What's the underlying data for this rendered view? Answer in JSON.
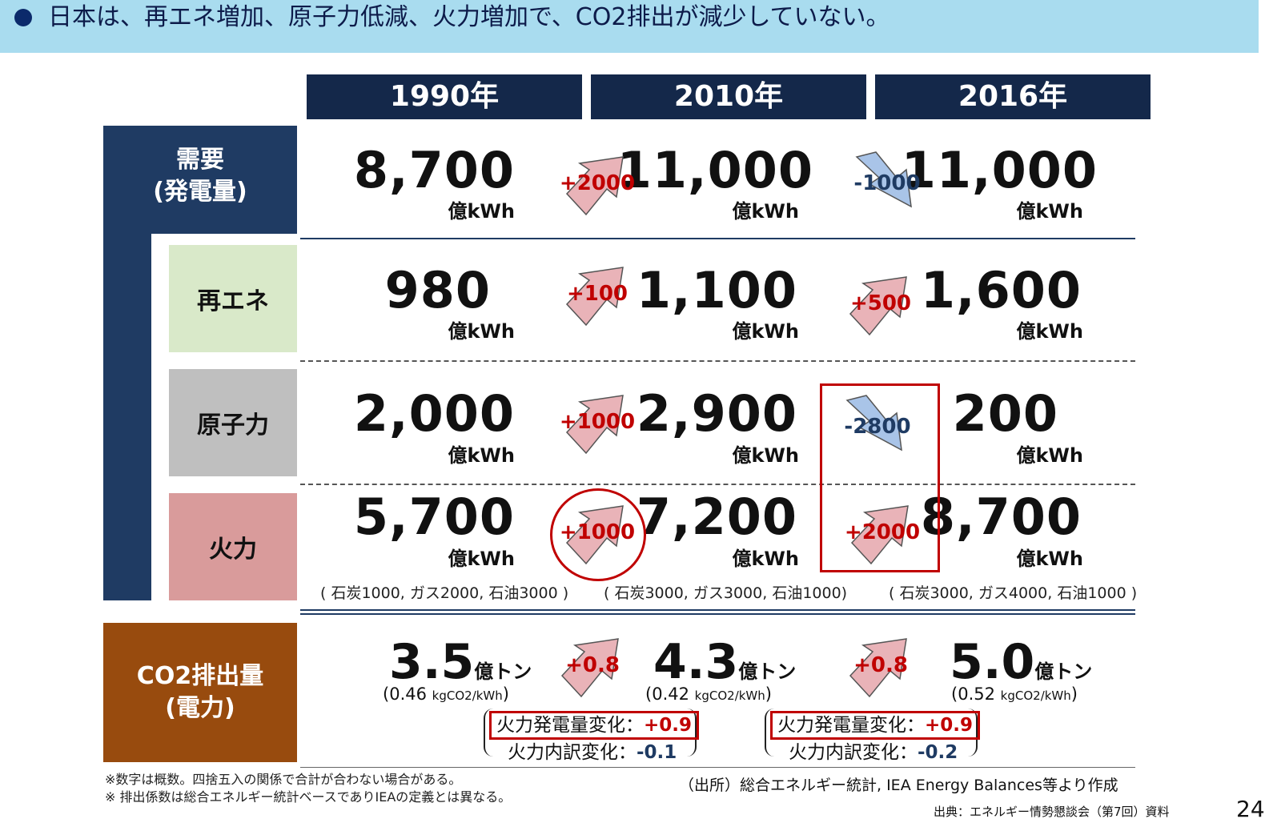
{
  "header": {
    "text": "日本は、再エネ増加、原子力低減、火力増加で、CO2排出が減少していない。"
  },
  "years": [
    "1990年",
    "2010年",
    "2016年"
  ],
  "categories": {
    "demand": [
      "需要",
      "(発電量)"
    ],
    "renew": "再エネ",
    "nuclear": "原子力",
    "thermal": "火力",
    "co2": [
      "CO2排出量",
      "(電力)"
    ]
  },
  "unit_kwh": "億kWh",
  "rows": {
    "demand": {
      "values": [
        "8,700",
        "11,000",
        "11,000"
      ],
      "changes": [
        "+2000",
        "-1000"
      ]
    },
    "renew": {
      "values": [
        "980",
        "1,100",
        "1,600"
      ],
      "changes": [
        "+100",
        "+500"
      ]
    },
    "nuclear": {
      "values": [
        "2,000",
        "2,900",
        "200"
      ],
      "changes": [
        "+1000",
        "-2800"
      ]
    },
    "thermal": {
      "values": [
        "5,700",
        "7,200",
        "8,700"
      ],
      "changes": [
        "+1000",
        "+2000"
      ]
    }
  },
  "thermal_mix": [
    "( 石炭1000, ガス2000, 石油3000 )",
    "( 石炭3000, ガス3000, 石油1000)",
    "( 石炭3000, ガス4000, 石油1000 )"
  ],
  "co2": {
    "values": [
      "3.5",
      "4.3",
      "5.0"
    ],
    "unit": "億トン",
    "intensity": [
      "0.46",
      "0.42",
      "0.52"
    ],
    "intensity_unit": "kgCO2/kWh",
    "changes": [
      "+0.8",
      "+0.8"
    ],
    "breakdown": [
      {
        "gen_label": "火力発電量変化：",
        "gen_value": "+0.9",
        "mix_label": "火力内訳変化：",
        "mix_value": "-0.1"
      },
      {
        "gen_label": "火力発電量変化：",
        "gen_value": "+0.9",
        "mix_label": "火力内訳変化：",
        "mix_value": "-0.2"
      }
    ]
  },
  "notes": [
    "※数字は概数。四捨五入の関係で合計が合わない場合がある。",
    "※ 排出係数は総合エネルギー統計ベースでありIEAの定義とは異なる。"
  ],
  "source": "（出所）総合エネルギー統計, IEA Energy Balances等より作成",
  "origin": "出典：エネルギー情勢懇談会（第7回）資料",
  "page_number": "24",
  "colors": {
    "increase": "#e9b3b8",
    "decrease": "#a9c4e8",
    "highlight": "#c00000",
    "navy": "#14284a"
  }
}
